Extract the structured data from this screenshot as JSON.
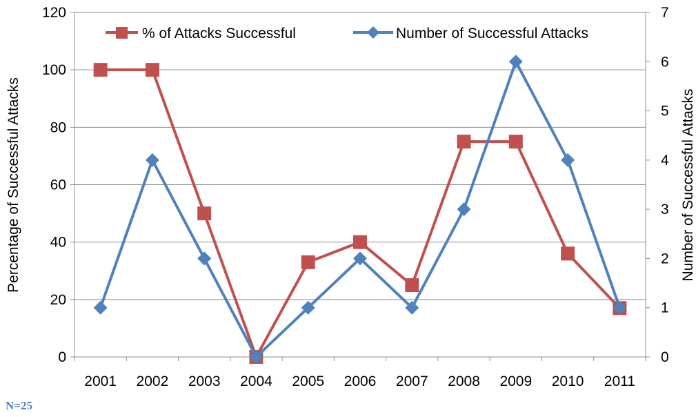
{
  "chart_data": {
    "type": "line",
    "categories": [
      "2001",
      "2002",
      "2003",
      "2004",
      "2005",
      "2006",
      "2007",
      "2008",
      "2009",
      "2010",
      "2011"
    ],
    "series": [
      {
        "name": "% of Attacks Successful",
        "axis": "left",
        "marker": "square",
        "color": "#c0504d",
        "values": [
          100,
          100,
          50,
          0,
          33,
          40,
          25,
          75,
          75,
          36,
          17
        ]
      },
      {
        "name": "Number of Successful Attacks",
        "axis": "right",
        "marker": "diamond",
        "color": "#4f81bd",
        "values": [
          1,
          4,
          2,
          0,
          1,
          2,
          1,
          3,
          6,
          4,
          1
        ]
      }
    ],
    "y_left": {
      "label": "Percentage of Successful Attacks",
      "lim": [
        0,
        120
      ],
      "ticks": [
        "0",
        "20",
        "40",
        "60",
        "80",
        "100",
        "120"
      ]
    },
    "y_right": {
      "label": "Number of Successful Attacks",
      "lim": [
        0,
        7
      ],
      "ticks": [
        "0",
        "1",
        "2",
        "3",
        "4",
        "5",
        "6",
        "7"
      ]
    },
    "grid": true,
    "legend": "top"
  },
  "footnote": "N=25",
  "footnote_color": "#4f81bd"
}
